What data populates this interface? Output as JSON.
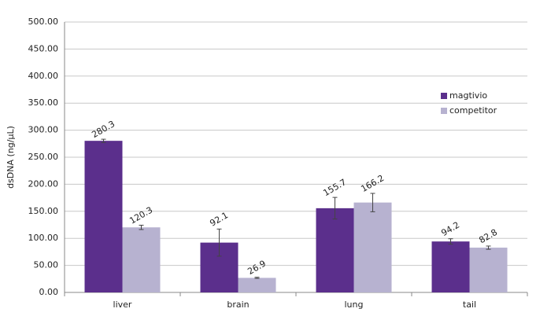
{
  "chart_data": {
    "type": "bar",
    "y_label": "dsDNA (ng/µL)",
    "categories": [
      "liver",
      "brain",
      "lung",
      "tail"
    ],
    "series": [
      {
        "name": "magtivio",
        "color": "#5b2f8c",
        "values": [
          280.3,
          92.1,
          155.7,
          94.2
        ],
        "errors": [
          3,
          25,
          20,
          5
        ]
      },
      {
        "name": "competitor",
        "color": "#b7b2d0",
        "values": [
          120.3,
          26.9,
          166.2,
          82.8
        ],
        "errors": [
          4,
          1,
          17,
          3
        ]
      }
    ],
    "ylim": [
      0,
      500
    ],
    "yticks": [
      {
        "value": 0,
        "label": "0.00"
      },
      {
        "value": 50,
        "label": "50.00"
      },
      {
        "value": 100,
        "label": "100.00"
      },
      {
        "value": 150,
        "label": "150.00"
      },
      {
        "value": 200,
        "label": "200.00"
      },
      {
        "value": 250,
        "label": "250.00"
      },
      {
        "value": 300,
        "label": "300.00"
      },
      {
        "value": 350,
        "label": "350.00"
      },
      {
        "value": 400,
        "label": "400.00"
      },
      {
        "value": 450,
        "label": "450.00"
      },
      {
        "value": 500,
        "label": "500.00"
      }
    ],
    "grid": true,
    "legend": "right"
  }
}
